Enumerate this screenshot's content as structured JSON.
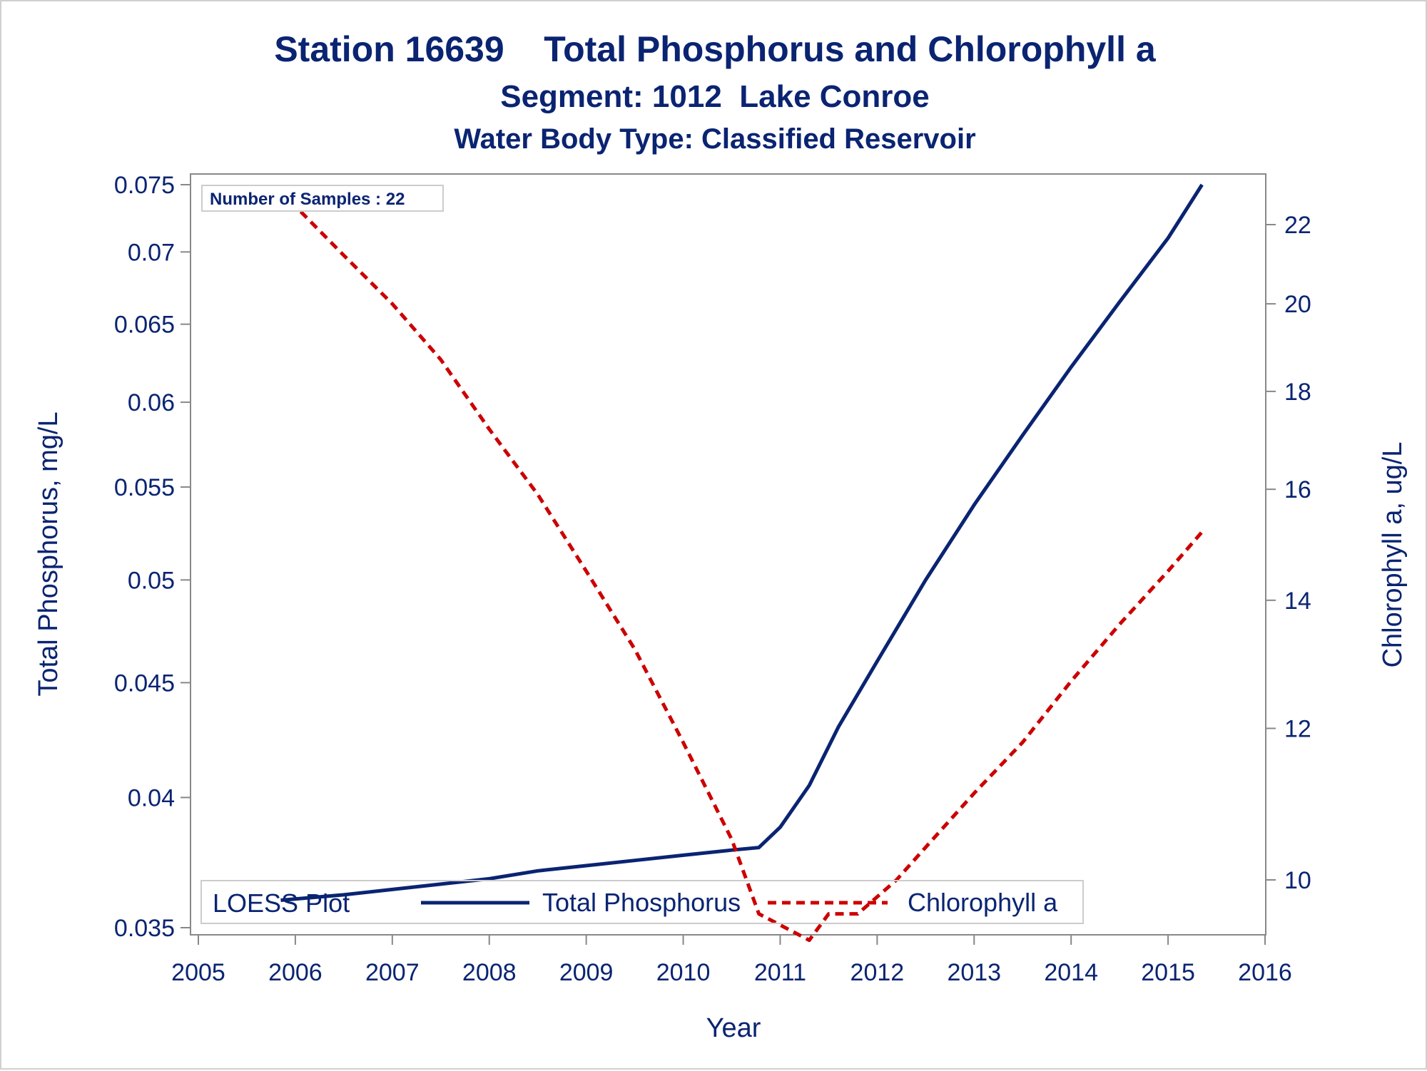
{
  "titles": {
    "line1": "Station 16639    Total Phosphorus and Chlorophyll a",
    "line2": "Segment: 1012  Lake Conroe",
    "line3": "Water Body Type: Classified Reservoir"
  },
  "inset_label": "Number of Samples : 22",
  "legend": {
    "title": "LOESS Plot",
    "items": [
      "Total Phosphorus",
      "Chlorophyll a"
    ]
  },
  "colors": {
    "text": "#0a2472",
    "phosphorus": "#0a2472",
    "chlorophyll": "#cc0000",
    "axis": "#888888"
  },
  "chart_data": {
    "type": "line",
    "xlabel": "Year",
    "ylabel": "Total Phosphorus, mg/L",
    "y2label": "Chlorophyll a, ug/L",
    "xlim": [
      2005,
      2016
    ],
    "ylim": [
      0.035,
      0.075
    ],
    "y2lim": [
      9.3,
      23
    ],
    "y_scale": "log",
    "y2_scale": "log",
    "x_ticks": [
      2005,
      2006,
      2007,
      2008,
      2009,
      2010,
      2011,
      2012,
      2013,
      2014,
      2015,
      2016
    ],
    "y_ticks": [
      "0.035",
      "0.04",
      "0.045",
      "0.05",
      "0.055",
      "0.06",
      "0.065",
      "0.07",
      "0.075"
    ],
    "y2_ticks": [
      "10",
      "12",
      "14",
      "16",
      "18",
      "20",
      "22"
    ],
    "legend_position": "bottom-inside",
    "series": [
      {
        "name": "Total Phosphorus",
        "axis": "left",
        "style": "solid",
        "x": [
          2005.85,
          2006.5,
          2007.0,
          2007.5,
          2008.0,
          2008.5,
          2009.0,
          2009.5,
          2010.0,
          2010.5,
          2010.78,
          2011.0,
          2011.3,
          2011.6,
          2012.0,
          2012.5,
          2013.0,
          2013.5,
          2014.0,
          2014.5,
          2015.0,
          2015.35
        ],
        "y": [
          0.036,
          0.0362,
          0.0364,
          0.0366,
          0.0368,
          0.0371,
          0.0373,
          0.0375,
          0.0377,
          0.0379,
          0.038,
          0.0388,
          0.0405,
          0.043,
          0.046,
          0.05,
          0.054,
          0.058,
          0.0622,
          0.0665,
          0.071,
          0.075
        ]
      },
      {
        "name": "Chlorophyll a",
        "axis": "right",
        "style": "dashed",
        "x": [
          2005.85,
          2006.5,
          2007.0,
          2007.5,
          2008.0,
          2008.5,
          2009.0,
          2009.5,
          2010.0,
          2010.5,
          2010.78,
          2011.3,
          2011.5,
          2011.8,
          2012.2,
          2012.5,
          2013.0,
          2013.5,
          2014.0,
          2014.5,
          2015.0,
          2015.35
        ],
        "y": [
          22.9,
          21.2,
          20.0,
          18.7,
          17.2,
          15.9,
          14.5,
          13.2,
          11.8,
          10.5,
          9.6,
          9.3,
          9.6,
          9.6,
          10.0,
          10.4,
          11.1,
          11.8,
          12.7,
          13.6,
          14.5,
          15.2
        ]
      }
    ]
  }
}
